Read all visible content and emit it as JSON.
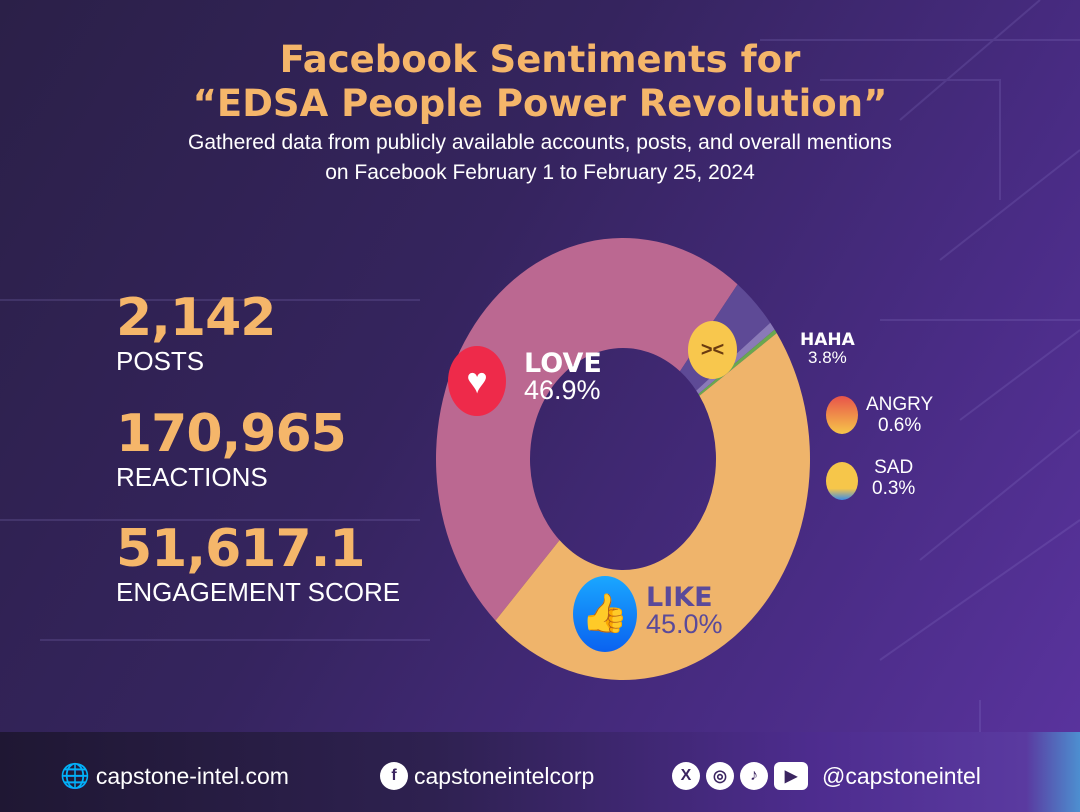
{
  "header": {
    "title_line1": "Facebook Sentiments for",
    "title_line2": "“EDSA People Power Revolution”",
    "subtitle_line1": "Gathered data from publicly available accounts, posts, and overall mentions",
    "subtitle_line2": "on Facebook February 1 to February 25, 2024"
  },
  "stats": [
    {
      "value": "2,142",
      "label": "POSTS"
    },
    {
      "value": "170,965",
      "label": "REACTIONS"
    },
    {
      "value": "51,617.1",
      "label": "ENGAGEMENT SCORE"
    }
  ],
  "chart_data": {
    "type": "pie",
    "variant": "donut",
    "title": "Facebook Sentiments for “EDSA People Power Revolution”",
    "slices": [
      {
        "name": "LOVE",
        "label": "46.9%",
        "value": 46.9,
        "color": "#bb6891",
        "icon": "heart-icon"
      },
      {
        "name": "HAHA",
        "label": "3.8%",
        "value": 3.8,
        "color": "#5e4a96",
        "icon": "laughing-emoji-icon"
      },
      {
        "name": "ANGRY",
        "label": "0.6%",
        "value": 0.6,
        "color": "#8a7ab8",
        "icon": "angry-emoji-icon"
      },
      {
        "name": "SAD",
        "label": "0.3%",
        "value": 0.3,
        "color": "#6aa84f",
        "icon": "crying-emoji-icon"
      },
      {
        "name": "LIKE",
        "label": "45.0%",
        "value": 45.0,
        "color": "#efb46b",
        "icon": "thumbs-up-icon"
      }
    ]
  },
  "footer": {
    "website": "capstone-intel.com",
    "facebook": "capstoneintelcorp",
    "handle": "@capstoneintel"
  }
}
